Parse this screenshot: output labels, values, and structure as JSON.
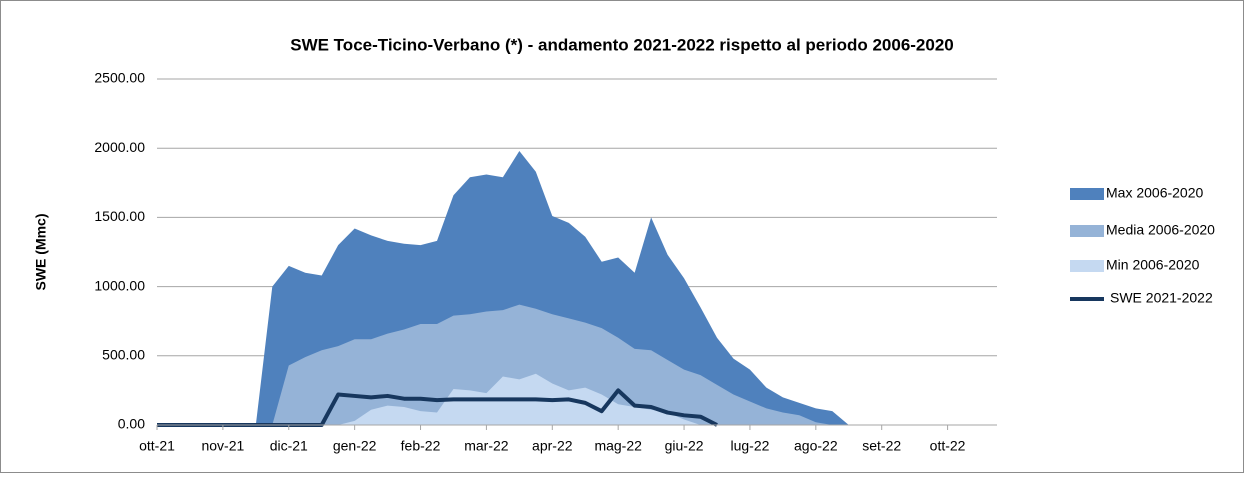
{
  "chart_data": {
    "type": "area",
    "title": "SWE Toce-Ticino-Verbano (*) - andamento 2021-2022 rispetto al periodo 2006-2020",
    "y_label": "SWE (Mmc)",
    "categories": [
      "ott-21",
      null,
      null,
      null,
      "nov-21",
      null,
      null,
      null,
      "dic-21",
      null,
      null,
      null,
      "gen-22",
      null,
      null,
      null,
      "feb-22",
      null,
      null,
      null,
      "mar-22",
      null,
      null,
      null,
      "apr-22",
      null,
      null,
      null,
      "mag-22",
      null,
      null,
      null,
      "giu-22",
      null,
      null,
      null,
      "lug-22",
      null,
      null,
      null,
      "ago-22",
      null,
      null,
      null,
      "set-22",
      null,
      null,
      null,
      "ott-22",
      null,
      null,
      null
    ],
    "ylim": [
      0,
      2500
    ],
    "yticks": [
      {
        "value": 0,
        "label": "0.00"
      },
      {
        "value": 500,
        "label": "500.00"
      },
      {
        "value": 1000,
        "label": "1000.00"
      },
      {
        "value": 1500,
        "label": "1500.00"
      },
      {
        "value": 2000,
        "label": "2000.00"
      },
      {
        "value": 2500,
        "label": "2500.00"
      }
    ],
    "grid": true,
    "legend": "right",
    "series": [
      {
        "name": "Max 2006-2020",
        "color": "#4f81bd",
        "kind": "area",
        "values": [
          0,
          0,
          0,
          0,
          0,
          0,
          0,
          1000,
          1150,
          1100,
          1080,
          1300,
          1420,
          1370,
          1330,
          1310,
          1300,
          1330,
          1660,
          1790,
          1810,
          1790,
          1980,
          1830,
          1510,
          1460,
          1360,
          1180,
          1210,
          1100,
          1500,
          1230,
          1060,
          850,
          630,
          480,
          400,
          270,
          200,
          160,
          120,
          100,
          0,
          0,
          0,
          0,
          0,
          0,
          0,
          0,
          0,
          0
        ]
      },
      {
        "name": "Media 2006-2020",
        "color": "#95b3d7",
        "kind": "area",
        "values": [
          0,
          0,
          0,
          0,
          0,
          0,
          0,
          0,
          430,
          490,
          540,
          570,
          620,
          620,
          660,
          690,
          730,
          730,
          790,
          800,
          820,
          830,
          870,
          840,
          800,
          770,
          740,
          700,
          630,
          550,
          540,
          470,
          400,
          360,
          290,
          220,
          170,
          120,
          90,
          70,
          20,
          0,
          0,
          0,
          0,
          0,
          0,
          0,
          0,
          0,
          0,
          0
        ]
      },
      {
        "name": "Min 2006-2020",
        "color": "#c5d9f1",
        "kind": "area",
        "values": [
          0,
          0,
          0,
          0,
          0,
          0,
          0,
          0,
          0,
          0,
          0,
          0,
          30,
          110,
          140,
          130,
          100,
          90,
          260,
          250,
          230,
          350,
          330,
          370,
          300,
          250,
          270,
          220,
          150,
          130,
          110,
          90,
          40,
          0,
          0,
          0,
          0,
          0,
          0,
          0,
          0,
          0,
          0,
          0,
          0,
          0,
          0,
          0,
          0,
          0,
          0,
          0
        ]
      },
      {
        "name": "SWE 2021-2022",
        "color": "#17375e",
        "kind": "line",
        "values": [
          0,
          0,
          0,
          0,
          0,
          0,
          0,
          0,
          0,
          0,
          0,
          220,
          210,
          200,
          210,
          190,
          190,
          180,
          185,
          185,
          185,
          185,
          185,
          185,
          180,
          185,
          160,
          100,
          250,
          140,
          130,
          90,
          70,
          60,
          0,
          null,
          null,
          null,
          null,
          null,
          null,
          null,
          null,
          null,
          null,
          null,
          null,
          null,
          null,
          null,
          null,
          null
        ]
      }
    ]
  }
}
